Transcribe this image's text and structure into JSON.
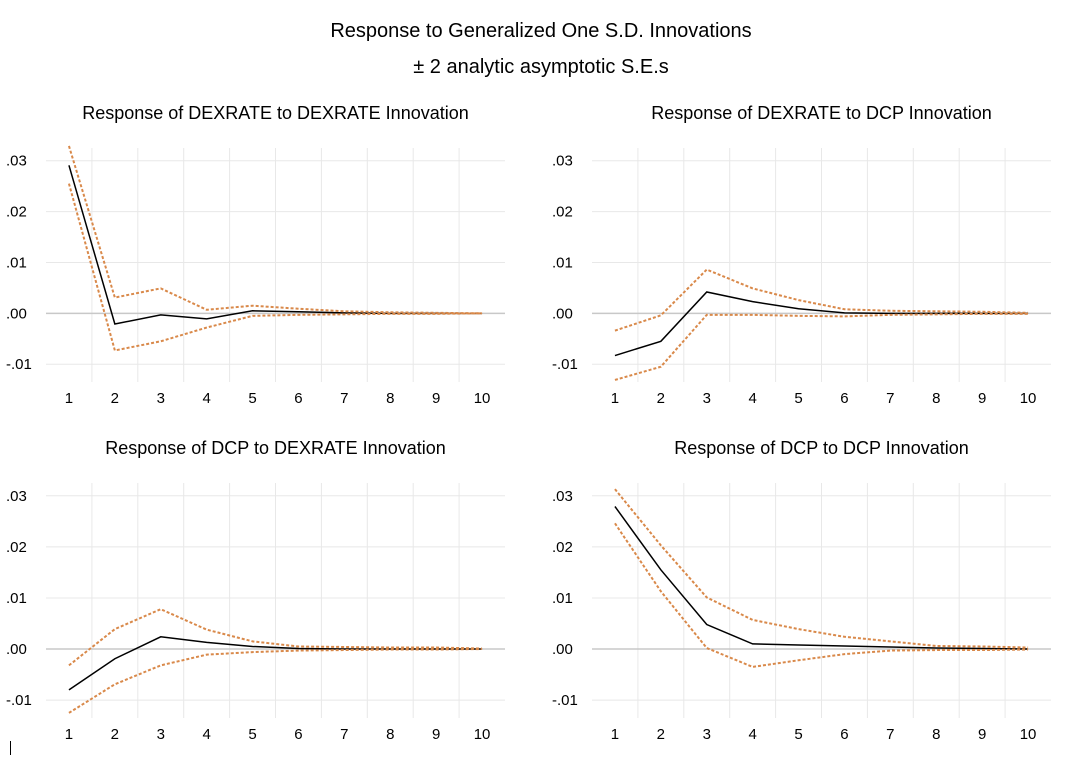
{
  "header": {
    "title": "Response to Generalized One S.D. Innovations",
    "subtitle": "± 2 analytic asymptotic S.E.s"
  },
  "colors": {
    "response": "#000000",
    "bands": "#d9894a",
    "grid": "#e8e8e8",
    "zero": "#c8c8c8"
  },
  "chart_data": [
    {
      "type": "line",
      "title": "Response of DEXRATE to DEXRATE Innovation",
      "x": [
        1,
        2,
        3,
        4,
        5,
        6,
        7,
        8,
        9,
        10
      ],
      "yticks": [
        ".03",
        ".02",
        ".01",
        ".00",
        "-.01"
      ],
      "ytick_values": [
        0.03,
        0.02,
        0.01,
        0,
        -0.01
      ],
      "ylim": [
        -0.0135,
        0.0325
      ],
      "grid": true,
      "series": [
        {
          "role": "response",
          "values": [
            0.0291,
            -0.0021,
            -0.0003,
            -0.0011,
            0.0005,
            0.0003,
            0.0001,
            0,
            0,
            0
          ]
        },
        {
          "role": "upper",
          "values": [
            0.0329,
            0.0031,
            0.0049,
            0.0007,
            0.0015,
            0.0009,
            0.0004,
            0.0002,
            0.0001,
            0
          ]
        },
        {
          "role": "lower",
          "values": [
            0.0255,
            -0.0073,
            -0.0055,
            -0.0028,
            -0.0005,
            -0.0003,
            -0.0002,
            -0.0001,
            -0.0001,
            0
          ]
        }
      ]
    },
    {
      "type": "line",
      "title": "Response of DEXRATE to DCP Innovation",
      "x": [
        1,
        2,
        3,
        4,
        5,
        6,
        7,
        8,
        9,
        10
      ],
      "yticks": [
        ".03",
        ".02",
        ".01",
        ".00",
        "-.01"
      ],
      "ytick_values": [
        0.03,
        0.02,
        0.01,
        0,
        -0.01
      ],
      "ylim": [
        -0.0135,
        0.0325
      ],
      "grid": true,
      "series": [
        {
          "role": "response",
          "values": [
            -0.0083,
            -0.0055,
            0.0042,
            0.0023,
            0.0009,
            0.0001,
            0,
            0,
            0,
            0
          ]
        },
        {
          "role": "upper",
          "values": [
            -0.0034,
            -0.0004,
            0.0086,
            0.0049,
            0.0026,
            0.0008,
            0.0005,
            0.0004,
            0.0003,
            0.0001
          ]
        },
        {
          "role": "lower",
          "values": [
            -0.0131,
            -0.0105,
            -0.0003,
            -0.0003,
            -0.0005,
            -0.0006,
            -0.0003,
            -0.0002,
            -0.0001,
            -0.0001
          ]
        }
      ]
    },
    {
      "type": "line",
      "title": "Response of DCP to DEXRATE Innovation",
      "x": [
        1,
        2,
        3,
        4,
        5,
        6,
        7,
        8,
        9,
        10
      ],
      "yticks": [
        ".03",
        ".02",
        ".01",
        ".00",
        "-.01"
      ],
      "ytick_values": [
        0.03,
        0.02,
        0.01,
        0,
        -0.01
      ],
      "ylim": [
        -0.0135,
        0.0325
      ],
      "grid": true,
      "series": [
        {
          "role": "response",
          "values": [
            -0.008,
            -0.0019,
            0.0024,
            0.0013,
            0.0005,
            0.0001,
            0,
            0,
            0,
            0
          ]
        },
        {
          "role": "upper",
          "values": [
            -0.0032,
            0.0039,
            0.0078,
            0.0038,
            0.0015,
            0.0005,
            0.0004,
            0.0003,
            0.0003,
            0.0001
          ]
        },
        {
          "role": "lower",
          "values": [
            -0.0125,
            -0.0069,
            -0.0032,
            -0.0011,
            -0.0006,
            -0.0003,
            -0.0002,
            -0.0001,
            -0.0001,
            0
          ]
        }
      ]
    },
    {
      "type": "line",
      "title": "Response of DCP to DCP Innovation",
      "x": [
        1,
        2,
        3,
        4,
        5,
        6,
        7,
        8,
        9,
        10
      ],
      "yticks": [
        ".03",
        ".02",
        ".01",
        ".00",
        "-.01"
      ],
      "ytick_values": [
        0.03,
        0.02,
        0.01,
        0,
        -0.01
      ],
      "ylim": [
        -0.0135,
        0.0325
      ],
      "grid": true,
      "series": [
        {
          "role": "response",
          "values": [
            0.0279,
            0.0155,
            0.0048,
            0.001,
            0.0008,
            0.0006,
            0.0004,
            0.0002,
            0.0001,
            0
          ]
        },
        {
          "role": "upper",
          "values": [
            0.0313,
            0.0203,
            0.0101,
            0.0057,
            0.0039,
            0.0024,
            0.0015,
            0.0006,
            0.0005,
            0.0003
          ]
        },
        {
          "role": "lower",
          "values": [
            0.0246,
            0.0113,
            0.0002,
            -0.0035,
            -0.0022,
            -0.001,
            -0.0003,
            -0.0002,
            -0.0002,
            -0.0001
          ]
        }
      ]
    }
  ]
}
